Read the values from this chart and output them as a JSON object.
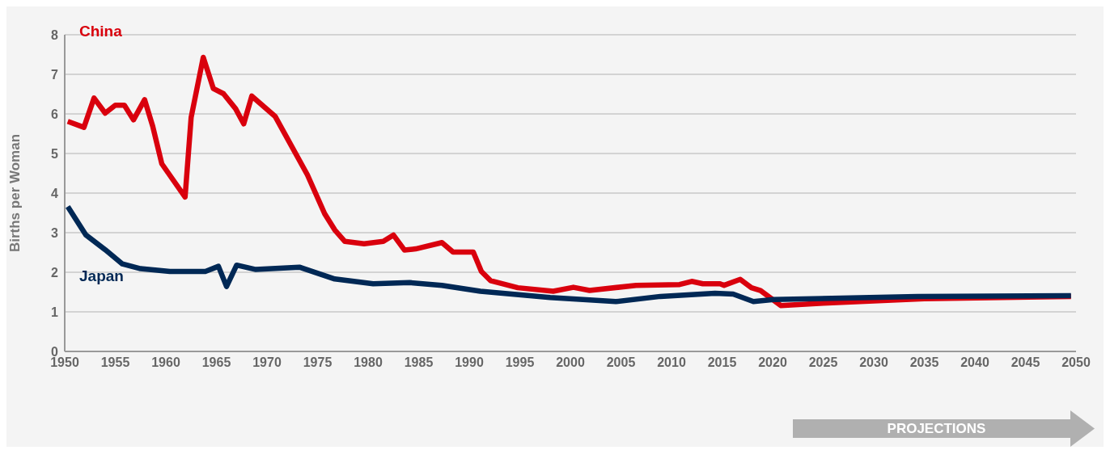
{
  "chart_data": {
    "type": "line",
    "ylabel": "Births per Woman",
    "xlim": [
      1950,
      2050
    ],
    "xticks": [
      1950,
      1955,
      1960,
      1965,
      1970,
      1975,
      1980,
      1985,
      1990,
      1995,
      2000,
      2005,
      2010,
      2015,
      2020,
      2025,
      2030,
      2035,
      2040,
      2045,
      2050
    ],
    "ylim": [
      0,
      8
    ],
    "yticks": [
      0,
      1,
      2,
      3,
      4,
      5,
      6,
      7,
      8
    ],
    "grid": "y",
    "legend": false,
    "marker": "none",
    "line_style": "solid",
    "annotations": [
      "PROJECTIONS"
    ],
    "series": [
      {
        "name": "China",
        "color": "#d9000d",
        "x": [
          1950.3,
          1951.9,
          1952.9,
          1954,
          1955,
          1955.9,
          1956.8,
          1957.9,
          1958.7,
          1959.6,
          1961.9,
          1962.5,
          1963.7,
          1964.7,
          1965.7,
          1966.9,
          1967.7,
          1968.5,
          1970.8,
          1972.1,
          1974,
          1975.7,
          1976.7,
          1977.7,
          1979.6,
          1981.5,
          1982.5,
          1983.6,
          1984.7,
          1987.3,
          1988.4,
          1990.4,
          1991.2,
          1992.1,
          1994.8,
          1998.3,
          2000.3,
          2001.9,
          2006.5,
          2010.8,
          2012,
          2013.1,
          2014.8,
          2015.2,
          2016.8,
          2017.9,
          2018.8,
          2020.8,
          2025,
          2035,
          2049.5
        ],
        "values": [
          5.81,
          5.66,
          6.4,
          6.02,
          6.22,
          6.22,
          5.85,
          6.36,
          5.69,
          4.74,
          3.9,
          5.91,
          7.43,
          6.64,
          6.51,
          6.13,
          5.75,
          6.45,
          5.94,
          5.34,
          4.46,
          3.48,
          3.07,
          2.78,
          2.72,
          2.78,
          2.94,
          2.56,
          2.59,
          2.75,
          2.51,
          2.51,
          2.02,
          1.79,
          1.61,
          1.52,
          1.62,
          1.54,
          1.67,
          1.69,
          1.77,
          1.71,
          1.71,
          1.67,
          1.82,
          1.61,
          1.54,
          1.16,
          1.22,
          1.33,
          1.39
        ]
      },
      {
        "name": "Japan",
        "color": "#002855",
        "x": [
          1950.3,
          1952.1,
          1954,
          1955.7,
          1957.5,
          1960.4,
          1963.9,
          1965.2,
          1966,
          1967,
          1968.9,
          1973.2,
          1976.7,
          1980.5,
          1984.1,
          1987.3,
          1991.1,
          1998,
          2004.5,
          2008.9,
          2014.3,
          2016.1,
          2018.1,
          2020.1,
          2034.3,
          2049.5
        ],
        "values": [
          3.66,
          2.94,
          2.57,
          2.21,
          2.09,
          2.02,
          2.02,
          2.15,
          1.64,
          2.18,
          2.07,
          2.13,
          1.83,
          1.71,
          1.74,
          1.67,
          1.52,
          1.36,
          1.26,
          1.39,
          1.47,
          1.45,
          1.26,
          1.31,
          1.39,
          1.41
        ]
      }
    ]
  }
}
